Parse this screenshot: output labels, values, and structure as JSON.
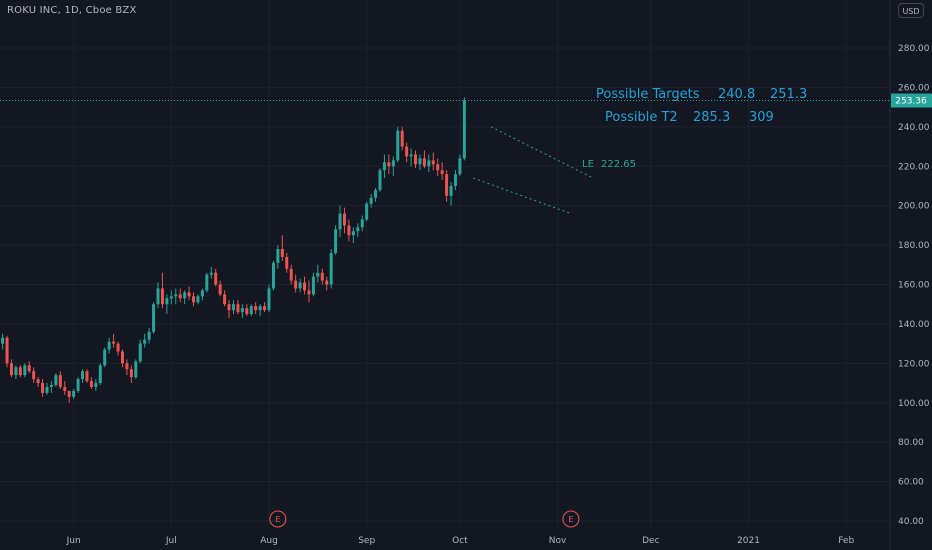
{
  "header": {
    "symbol_title": "ROKU INC, 1D, Cboe BZX",
    "currency_button": "USD"
  },
  "price_tag": "253.36",
  "colors": {
    "background": "#131722",
    "grid": "#1e222d",
    "axis_text": "#b2b5be",
    "up": "#26a69a",
    "down": "#ef5350",
    "annotation": "#22a2d8",
    "last_price": "#26a69a"
  },
  "annotations": {
    "targets_label": "Possible Targets",
    "target1": "240.8",
    "target2": "251.3",
    "t2_label": "Possible T2",
    "t2_value1": "285.3",
    "t2_value2": "309",
    "le_label": "LE",
    "le_value": "222.65"
  },
  "earnings_marker": "E",
  "chart_data": {
    "type": "candlestick",
    "title": "ROKU INC, 1D, Cboe BZX",
    "currency": "USD",
    "ylim": [
      35,
      290
    ],
    "y_ticks": [
      40,
      60,
      80,
      100,
      120,
      140,
      160,
      180,
      200,
      220,
      240,
      260,
      280
    ],
    "y_tick_labels": [
      "40.00",
      "60.00",
      "80.00",
      "100.00",
      "120.00",
      "140.00",
      "160.00",
      "180.00",
      "200.00",
      "220.00",
      "240.00",
      "260.00",
      "280.00"
    ],
    "x_ticks": [
      {
        "label": "Jun",
        "index": 16
      },
      {
        "label": "Jul",
        "index": 38
      },
      {
        "label": "Aug",
        "index": 60
      },
      {
        "label": "Sep",
        "index": 82
      },
      {
        "label": "Oct",
        "index": 103
      },
      {
        "label": "Nov",
        "index": 125
      },
      {
        "label": "Dec",
        "index": 146
      },
      {
        "label": "2021",
        "index": 168
      },
      {
        "label": "Feb",
        "index": 190
      }
    ],
    "last_price": 253.36,
    "earnings_dates": [
      {
        "index": 62,
        "label": "E"
      },
      {
        "index": 128,
        "label": "E"
      }
    ],
    "candles": [
      [
        130,
        135,
        127,
        133
      ],
      [
        133,
        134,
        118,
        120
      ],
      [
        120,
        122,
        113,
        114
      ],
      [
        114,
        119,
        112,
        118
      ],
      [
        118,
        119,
        113,
        114
      ],
      [
        114,
        120,
        113,
        119
      ],
      [
        119,
        121,
        115,
        116
      ],
      [
        116,
        118,
        110,
        112
      ],
      [
        112,
        113,
        108,
        110
      ],
      [
        110,
        112,
        103,
        105
      ],
      [
        105,
        110,
        104,
        108
      ],
      [
        108,
        111,
        105,
        109
      ],
      [
        109,
        115,
        108,
        114
      ],
      [
        114,
        116,
        107,
        108
      ],
      [
        108,
        111,
        104,
        106
      ],
      [
        106,
        106,
        100,
        103
      ],
      [
        103,
        107,
        102,
        106
      ],
      [
        106,
        113,
        105,
        112
      ],
      [
        112,
        117,
        110,
        116
      ],
      [
        116,
        117,
        110,
        111
      ],
      [
        111,
        113,
        107,
        108
      ],
      [
        108,
        112,
        106,
        110
      ],
      [
        110,
        120,
        109,
        119
      ],
      [
        119,
        128,
        118,
        127
      ],
      [
        127,
        133,
        125,
        131
      ],
      [
        131,
        135,
        128,
        130
      ],
      [
        130,
        131,
        124,
        126
      ],
      [
        126,
        127,
        118,
        120
      ],
      [
        120,
        122,
        114,
        117
      ],
      [
        117,
        119,
        110,
        113
      ],
      [
        113,
        122,
        112,
        121
      ],
      [
        121,
        132,
        120,
        130
      ],
      [
        130,
        135,
        128,
        132
      ],
      [
        132,
        138,
        130,
        136
      ],
      [
        136,
        151,
        135,
        150
      ],
      [
        150,
        161,
        148,
        158
      ],
      [
        158,
        166,
        148,
        150
      ],
      [
        150,
        155,
        145,
        153
      ],
      [
        153,
        157,
        150,
        154
      ],
      [
        154,
        158,
        150,
        155
      ],
      [
        155,
        158,
        151,
        153
      ],
      [
        153,
        157,
        150,
        156
      ],
      [
        156,
        159,
        152,
        154
      ],
      [
        154,
        156,
        149,
        151
      ],
      [
        151,
        155,
        150,
        154
      ],
      [
        154,
        158,
        152,
        157
      ],
      [
        157,
        166,
        156,
        165
      ],
      [
        165,
        169,
        163,
        166
      ],
      [
        166,
        168,
        159,
        160
      ],
      [
        160,
        162,
        154,
        155
      ],
      [
        155,
        157,
        149,
        150
      ],
      [
        150,
        152,
        143,
        147
      ],
      [
        147,
        152,
        145,
        150
      ],
      [
        150,
        152,
        145,
        146
      ],
      [
        146,
        150,
        143,
        148
      ],
      [
        148,
        150,
        144,
        145
      ],
      [
        145,
        150,
        144,
        149
      ],
      [
        149,
        151,
        145,
        147
      ],
      [
        147,
        150,
        144,
        149
      ],
      [
        149,
        151,
        146,
        147
      ],
      [
        147,
        160,
        146,
        158
      ],
      [
        158,
        172,
        157,
        171
      ],
      [
        171,
        180,
        168,
        178
      ],
      [
        178,
        185,
        172,
        174
      ],
      [
        174,
        176,
        166,
        168
      ],
      [
        168,
        170,
        160,
        162
      ],
      [
        162,
        165,
        156,
        158
      ],
      [
        158,
        163,
        156,
        161
      ],
      [
        161,
        164,
        155,
        157
      ],
      [
        157,
        162,
        151,
        155
      ],
      [
        155,
        166,
        154,
        164
      ],
      [
        164,
        170,
        161,
        166
      ],
      [
        166,
        168,
        160,
        162
      ],
      [
        162,
        164,
        157,
        160
      ],
      [
        160,
        178,
        158,
        176
      ],
      [
        176,
        190,
        175,
        188
      ],
      [
        188,
        200,
        184,
        196
      ],
      [
        196,
        199,
        186,
        190
      ],
      [
        190,
        193,
        182,
        185
      ],
      [
        185,
        189,
        181,
        187
      ],
      [
        187,
        191,
        184,
        189
      ],
      [
        189,
        195,
        187,
        193
      ],
      [
        193,
        202,
        192,
        201
      ],
      [
        201,
        206,
        199,
        204
      ],
      [
        204,
        209,
        202,
        208
      ],
      [
        208,
        219,
        207,
        218
      ],
      [
        218,
        226,
        214,
        222
      ],
      [
        222,
        226,
        216,
        220
      ],
      [
        220,
        225,
        215,
        223
      ],
      [
        223,
        240,
        222,
        238
      ],
      [
        238,
        240,
        228,
        230
      ],
      [
        230,
        232,
        222,
        225
      ],
      [
        225,
        229,
        220,
        226
      ],
      [
        226,
        228,
        219,
        221
      ],
      [
        221,
        226,
        218,
        224
      ],
      [
        224,
        228,
        219,
        220
      ],
      [
        220,
        226,
        217,
        223
      ],
      [
        223,
        227,
        218,
        221
      ],
      [
        221,
        224,
        215,
        218
      ],
      [
        218,
        222,
        213,
        216
      ],
      [
        216,
        218,
        202,
        205
      ],
      [
        205,
        212,
        200,
        210
      ],
      [
        210,
        218,
        208,
        216
      ],
      [
        216,
        226,
        215,
        224
      ],
      [
        224,
        255,
        223,
        253.36
      ]
    ]
  }
}
